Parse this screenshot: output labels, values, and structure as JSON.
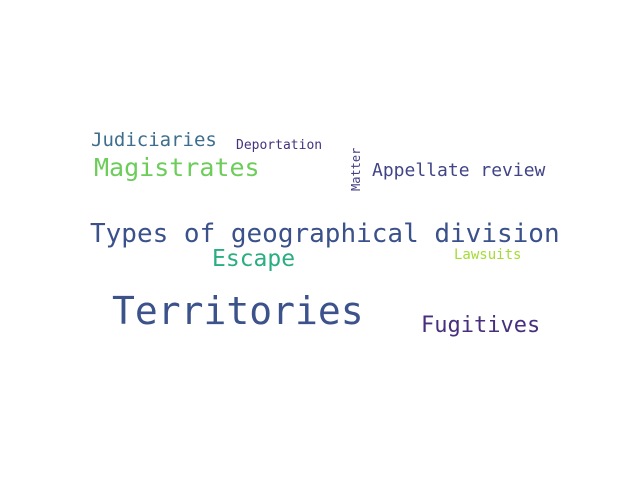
{
  "wordcloud": {
    "words": [
      {
        "id": "territories",
        "text": "Territories",
        "color": "#3b528b"
      },
      {
        "id": "types",
        "text": "Types of geographical division",
        "color": "#3b518b"
      },
      {
        "id": "magistrates",
        "text": "Magistrates",
        "color": "#6ccd5a"
      },
      {
        "id": "escape",
        "text": "Escape",
        "color": "#2aae80"
      },
      {
        "id": "fugitives",
        "text": "Fugitives",
        "color": "#472f7d"
      },
      {
        "id": "judiciaries",
        "text": "Judiciaries",
        "color": "#3e6e8e"
      },
      {
        "id": "appellate",
        "text": "Appellate review",
        "color": "#414487"
      },
      {
        "id": "deportation",
        "text": "Deportation",
        "color": "#46327e"
      },
      {
        "id": "lawsuits",
        "text": "Lawsuits",
        "color": "#a5db36"
      },
      {
        "id": "matter",
        "text": "Matter",
        "color": "#433e85"
      }
    ]
  }
}
